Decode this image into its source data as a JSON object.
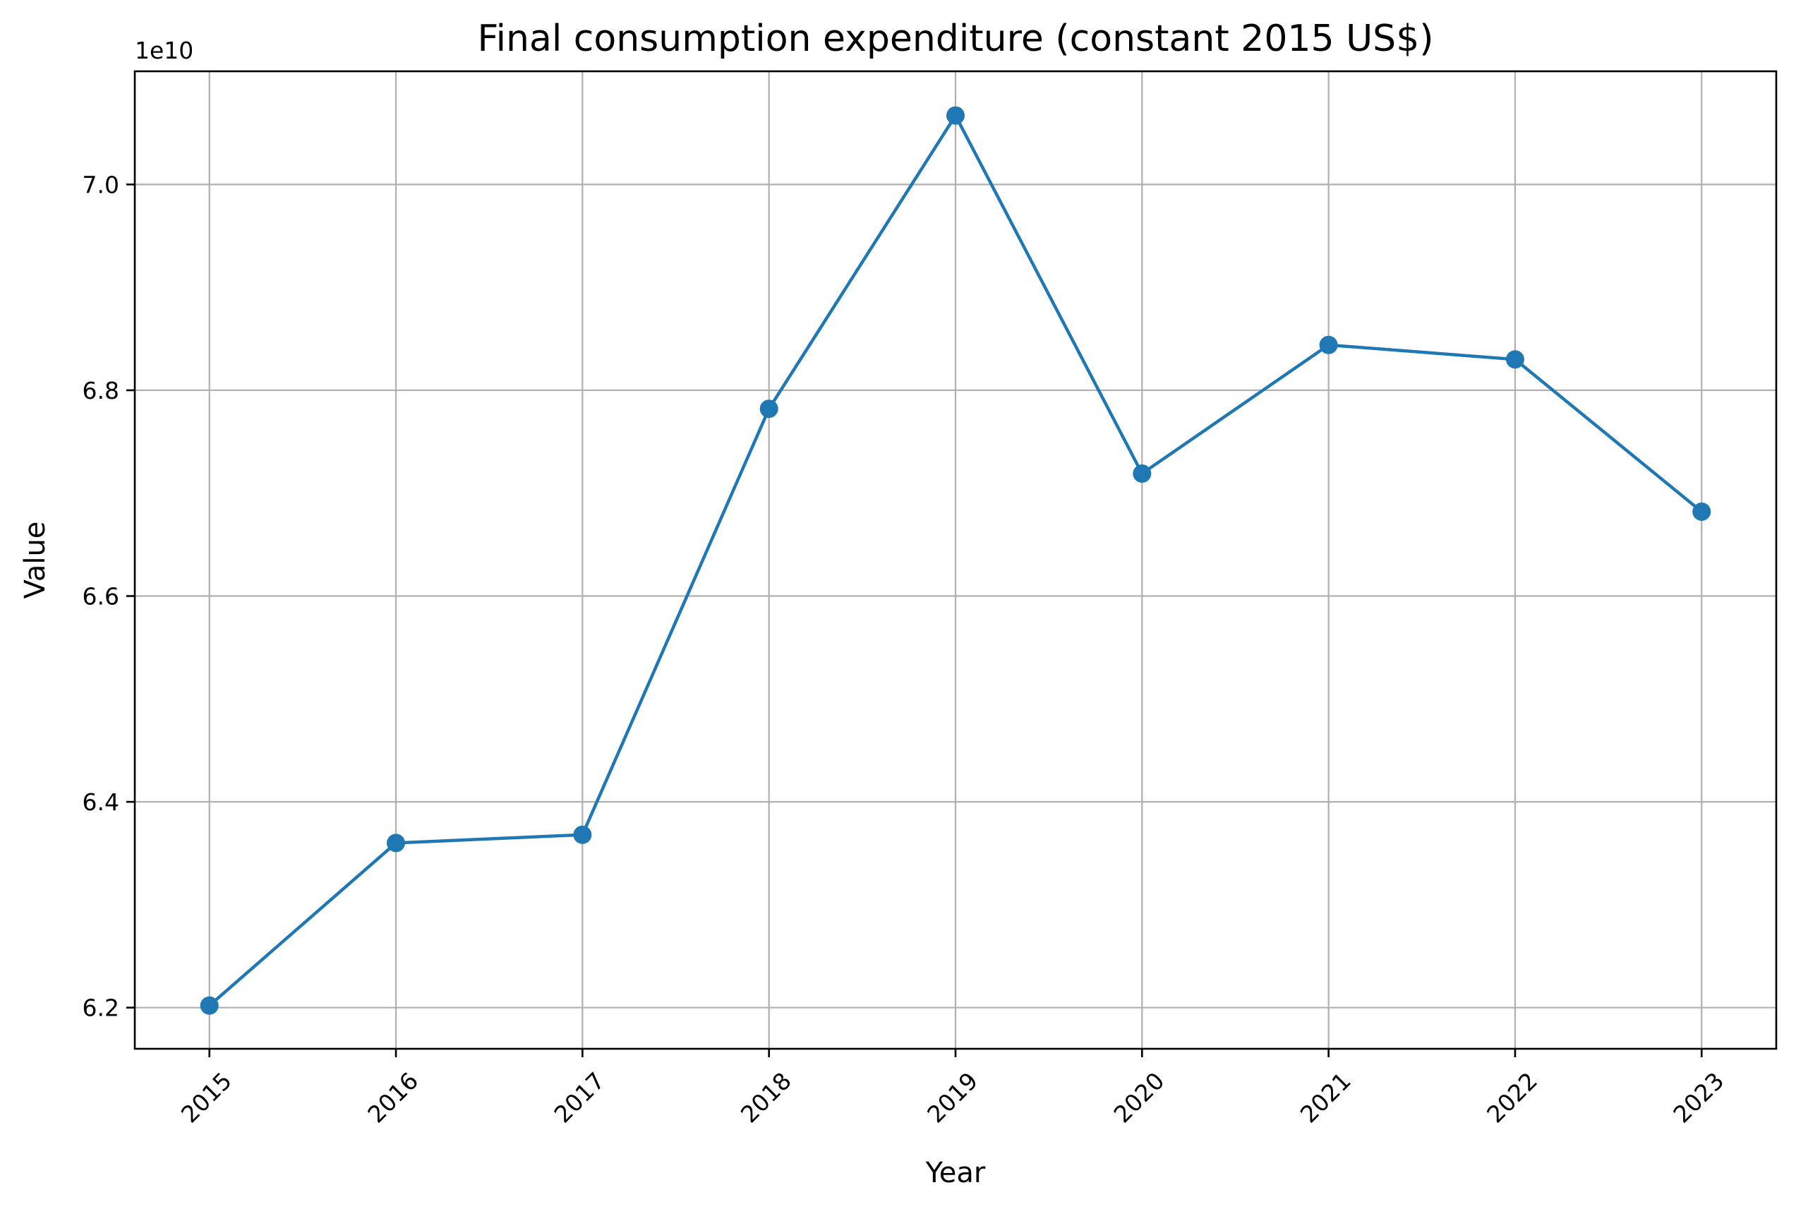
{
  "chart_data": {
    "type": "line",
    "title": "Final consumption expenditure (constant 2015 US$)",
    "xlabel": "Year",
    "ylabel": "Value",
    "y_offset_label": "1e10",
    "x": [
      "2015",
      "2016",
      "2017",
      "2018",
      "2019",
      "2020",
      "2021",
      "2022",
      "2023"
    ],
    "series": [
      {
        "values": [
          62020000000,
          63600000000,
          63680000000,
          67820000000,
          70670000000,
          67190000000,
          68440000000,
          68300000000,
          66820000000
        ],
        "color": "#1f77b4",
        "marker": "circle"
      }
    ],
    "y_ticks": [
      62000000000,
      64000000000,
      66000000000,
      68000000000,
      70000000000
    ],
    "y_tick_labels": [
      "6.2",
      "6.4",
      "6.6",
      "6.8",
      "7.0"
    ],
    "ylim": [
      61600000000,
      71100000000
    ],
    "xlim": [
      2014.6,
      2023.4
    ],
    "grid": true,
    "x_tick_rotation_deg": 45
  }
}
